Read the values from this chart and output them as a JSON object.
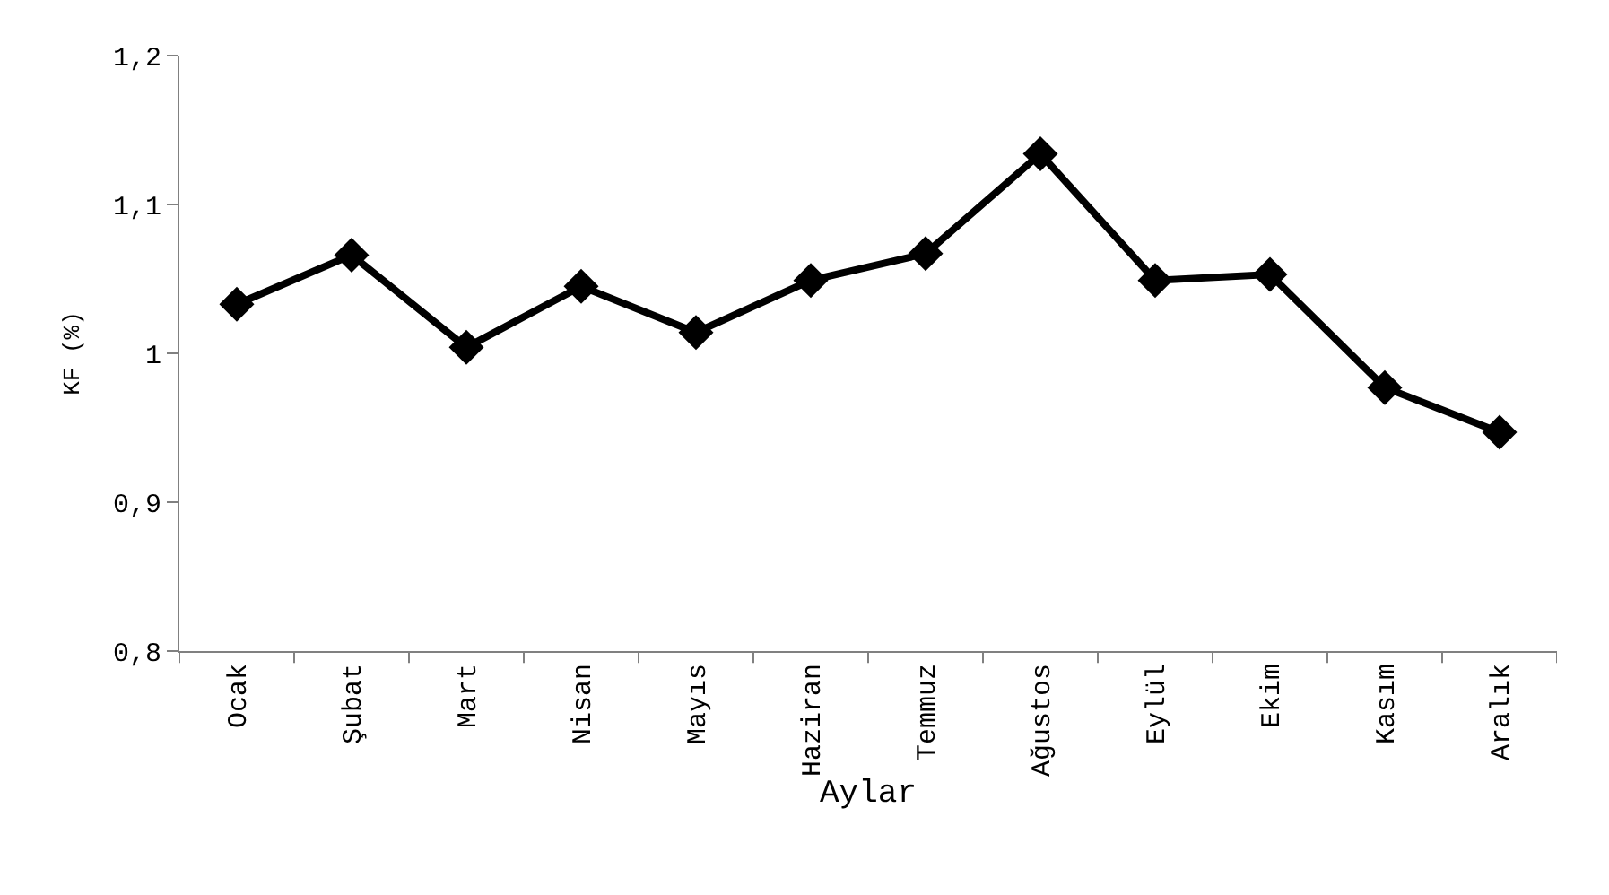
{
  "chart_data": {
    "type": "line",
    "xlabel": "Aylar",
    "ylabel": "KF (%)",
    "categories": [
      "Ocak",
      "Şubat",
      "Mart",
      "Nisan",
      "Mayıs",
      "Haziran",
      "Temmuz",
      "Ağustos",
      "Eylül",
      "Ekim",
      "Kasım",
      "Aralık"
    ],
    "series": [
      {
        "color": "#000000",
        "values": [
          1.033,
          1.066,
          1.004,
          1.045,
          1.014,
          1.049,
          1.067,
          1.134,
          1.049,
          1.053,
          0.977,
          0.947
        ]
      }
    ],
    "ylim": [
      0.8,
      1.2
    ],
    "yticks": [
      {
        "value": 0.8,
        "label": "0,8"
      },
      {
        "value": 0.9,
        "label": "0,9"
      },
      {
        "value": 1,
        "label": "1"
      },
      {
        "value": 1.1,
        "label": "1,1"
      },
      {
        "value": 1.2,
        "label": "1,2"
      }
    ],
    "marker": "diamond",
    "line_style": "solid",
    "legend": false
  }
}
